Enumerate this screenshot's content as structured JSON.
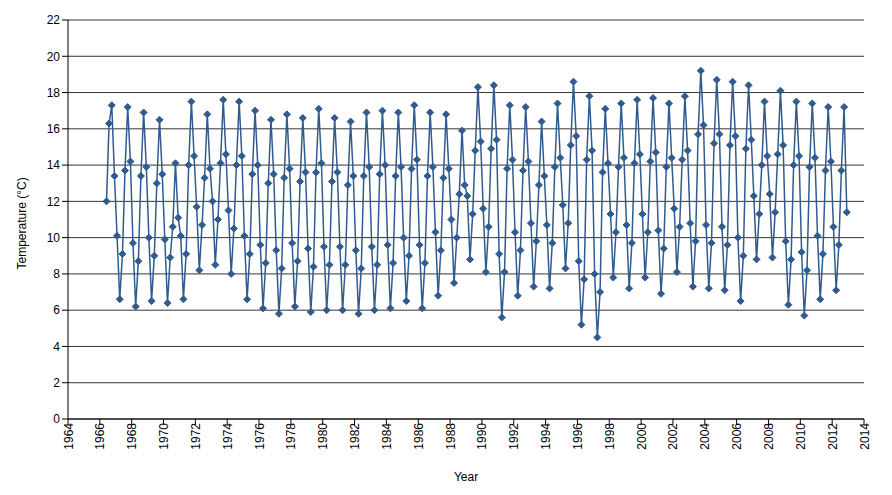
{
  "chart_data": {
    "type": "line",
    "x_label": "Year",
    "y_label": "Temperature (°C)",
    "xlim": [
      1964,
      2014
    ],
    "xticks": [
      1964,
      1966,
      1968,
      1970,
      1972,
      1974,
      1976,
      1978,
      1980,
      1982,
      1984,
      1986,
      1988,
      1990,
      1992,
      1994,
      1996,
      1998,
      2000,
      2002,
      2004,
      2006,
      2008,
      2010,
      2012,
      2014
    ],
    "ylim": [
      0,
      22
    ],
    "yticks": [
      0,
      2,
      4,
      6,
      8,
      10,
      12,
      14,
      16,
      18,
      20,
      22
    ],
    "grid": true,
    "color": "#2f5b8f",
    "marker": "diamond",
    "x": [
      1966.42,
      1966.58,
      1966.75,
      1966.92,
      1967.08,
      1967.25,
      1967.42,
      1967.58,
      1967.75,
      1967.92,
      1968.08,
      1968.25,
      1968.42,
      1968.58,
      1968.75,
      1968.92,
      1969.08,
      1969.25,
      1969.42,
      1969.58,
      1969.75,
      1969.92,
      1970.08,
      1970.25,
      1970.42,
      1970.58,
      1970.75,
      1970.92,
      1971.08,
      1971.25,
      1971.42,
      1971.58,
      1971.75,
      1971.92,
      1972.08,
      1972.25,
      1972.42,
      1972.58,
      1972.75,
      1972.92,
      1973.08,
      1973.25,
      1973.42,
      1973.58,
      1973.75,
      1973.92,
      1974.08,
      1974.25,
      1974.42,
      1974.58,
      1974.75,
      1974.92,
      1975.08,
      1975.25,
      1975.42,
      1975.58,
      1975.75,
      1975.92,
      1976.08,
      1976.25,
      1976.42,
      1976.58,
      1976.75,
      1976.92,
      1977.08,
      1977.25,
      1977.42,
      1977.58,
      1977.75,
      1977.92,
      1978.08,
      1978.25,
      1978.42,
      1978.58,
      1978.75,
      1978.92,
      1979.08,
      1979.25,
      1979.42,
      1979.58,
      1979.75,
      1979.92,
      1980.08,
      1980.25,
      1980.42,
      1980.58,
      1980.75,
      1980.92,
      1981.08,
      1981.25,
      1981.42,
      1981.58,
      1981.75,
      1981.92,
      1982.08,
      1982.25,
      1982.42,
      1982.58,
      1982.75,
      1982.92,
      1983.08,
      1983.25,
      1983.42,
      1983.58,
      1983.75,
      1983.92,
      1984.08,
      1984.25,
      1984.42,
      1984.58,
      1984.75,
      1984.92,
      1985.08,
      1985.25,
      1985.42,
      1985.58,
      1985.75,
      1985.92,
      1986.08,
      1986.25,
      1986.42,
      1986.58,
      1986.75,
      1986.92,
      1987.08,
      1987.25,
      1987.42,
      1987.58,
      1987.75,
      1987.92,
      1988.08,
      1988.25,
      1988.42,
      1988.58,
      1988.75,
      1988.92,
      1989.08,
      1989.25,
      1989.42,
      1989.58,
      1989.75,
      1989.92,
      1990.08,
      1990.25,
      1990.42,
      1990.58,
      1990.75,
      1990.92,
      1991.08,
      1991.25,
      1991.42,
      1991.58,
      1991.75,
      1991.92,
      1992.08,
      1992.25,
      1992.42,
      1992.58,
      1992.75,
      1992.92,
      1993.08,
      1993.25,
      1993.42,
      1993.58,
      1993.75,
      1993.92,
      1994.08,
      1994.25,
      1994.42,
      1994.58,
      1994.75,
      1994.92,
      1995.08,
      1995.25,
      1995.42,
      1995.58,
      1995.75,
      1995.92,
      1996.08,
      1996.25,
      1996.42,
      1996.58,
      1996.75,
      1996.92,
      1997.08,
      1997.25,
      1997.42,
      1997.58,
      1997.75,
      1997.92,
      1998.08,
      1998.25,
      1998.42,
      1998.58,
      1998.75,
      1998.92,
      1999.08,
      1999.25,
      1999.42,
      1999.58,
      1999.75,
      1999.92,
      2000.08,
      2000.25,
      2000.42,
      2000.58,
      2000.75,
      2000.92,
      2001.08,
      2001.25,
      2001.42,
      2001.58,
      2001.75,
      2001.92,
      2002.08,
      2002.25,
      2002.42,
      2002.58,
      2002.75,
      2002.92,
      2003.08,
      2003.25,
      2003.42,
      2003.58,
      2003.75,
      2003.92,
      2004.08,
      2004.25,
      2004.42,
      2004.58,
      2004.75,
      2004.92,
      2005.08,
      2005.25,
      2005.42,
      2005.58,
      2005.75,
      2005.92,
      2006.08,
      2006.25,
      2006.42,
      2006.58,
      2006.75,
      2006.92,
      2007.08,
      2007.25,
      2007.42,
      2007.58,
      2007.75,
      2007.92,
      2008.08,
      2008.25,
      2008.42,
      2008.58,
      2008.75,
      2008.92,
      2009.08,
      2009.25,
      2009.42,
      2009.58,
      2009.75,
      2009.92,
      2010.08,
      2010.25,
      2010.42,
      2010.58,
      2010.75,
      2010.92,
      2011.08,
      2011.25,
      2011.42,
      2011.58,
      2011.75,
      2011.92,
      2012.08,
      2012.25,
      2012.42,
      2012.58,
      2012.75,
      2012.92
    ],
    "values": [
      12.0,
      16.3,
      17.3,
      13.4,
      10.1,
      6.6,
      9.1,
      13.7,
      17.2,
      14.2,
      9.7,
      6.2,
      8.7,
      13.4,
      16.9,
      13.9,
      10.0,
      6.5,
      9.0,
      13.0,
      16.5,
      13.5,
      9.9,
      6.4,
      8.9,
      10.6,
      14.1,
      11.1,
      10.1,
      6.6,
      9.1,
      14.0,
      17.5,
      14.5,
      11.7,
      8.2,
      10.7,
      13.3,
      16.8,
      13.8,
      12.0,
      8.5,
      11.0,
      14.1,
      17.6,
      14.6,
      11.5,
      8.0,
      10.5,
      14.0,
      17.5,
      14.5,
      10.1,
      6.6,
      9.1,
      13.5,
      17.0,
      14.0,
      9.6,
      6.1,
      8.6,
      13.0,
      16.5,
      13.5,
      9.3,
      5.8,
      8.3,
      13.3,
      16.8,
      13.8,
      9.7,
      6.2,
      8.7,
      13.1,
      16.6,
      13.6,
      9.4,
      5.9,
      8.4,
      13.6,
      17.1,
      14.1,
      9.5,
      6.0,
      8.5,
      13.1,
      16.6,
      13.6,
      9.5,
      6.0,
      8.5,
      12.9,
      16.4,
      13.4,
      9.3,
      5.8,
      8.3,
      13.4,
      16.9,
      13.9,
      9.5,
      6.0,
      8.5,
      13.5,
      17.0,
      14.0,
      9.6,
      6.1,
      8.6,
      13.4,
      16.9,
      13.9,
      10.0,
      6.5,
      9.0,
      13.8,
      17.3,
      14.3,
      9.6,
      6.1,
      8.6,
      13.4,
      16.9,
      13.9,
      10.3,
      6.8,
      9.3,
      13.3,
      16.8,
      13.8,
      11.0,
      7.5,
      10.0,
      12.4,
      15.9,
      12.9,
      12.3,
      8.8,
      11.3,
      14.8,
      18.3,
      15.3,
      11.6,
      8.1,
      10.6,
      14.9,
      18.4,
      15.4,
      9.1,
      5.6,
      8.1,
      13.8,
      17.3,
      14.3,
      10.3,
      6.8,
      9.3,
      13.7,
      17.2,
      14.2,
      10.8,
      7.3,
      9.8,
      12.9,
      16.4,
      13.4,
      10.7,
      7.2,
      9.7,
      13.9,
      17.4,
      14.4,
      11.8,
      8.3,
      10.8,
      15.1,
      18.6,
      15.6,
      8.7,
      5.2,
      7.7,
      14.3,
      17.8,
      14.8,
      8.0,
      4.5,
      7.0,
      13.6,
      17.1,
      14.1,
      11.3,
      7.8,
      10.3,
      13.9,
      17.4,
      14.4,
      10.7,
      7.2,
      9.7,
      14.1,
      17.6,
      14.6,
      11.3,
      7.8,
      10.3,
      14.2,
      17.7,
      14.7,
      10.4,
      6.9,
      9.4,
      13.9,
      17.4,
      14.4,
      11.6,
      8.1,
      10.6,
      14.3,
      17.8,
      14.8,
      10.8,
      7.3,
      9.8,
      15.7,
      19.2,
      16.2,
      10.7,
      7.2,
      9.7,
      15.2,
      18.7,
      15.7,
      10.6,
      7.1,
      9.6,
      15.1,
      18.6,
      15.6,
      10.0,
      6.5,
      9.0,
      14.9,
      18.4,
      15.4,
      12.3,
      8.8,
      11.3,
      14.0,
      17.5,
      14.5,
      12.4,
      8.9,
      11.4,
      14.6,
      18.1,
      15.1,
      9.8,
      6.3,
      8.8,
      14.0,
      17.5,
      14.5,
      9.2,
      5.7,
      8.2,
      13.9,
      17.4,
      14.4,
      10.1,
      6.6,
      9.1,
      13.7,
      17.2,
      14.2,
      10.6,
      7.1,
      9.6,
      13.7,
      17.2,
      11.4
    ]
  }
}
